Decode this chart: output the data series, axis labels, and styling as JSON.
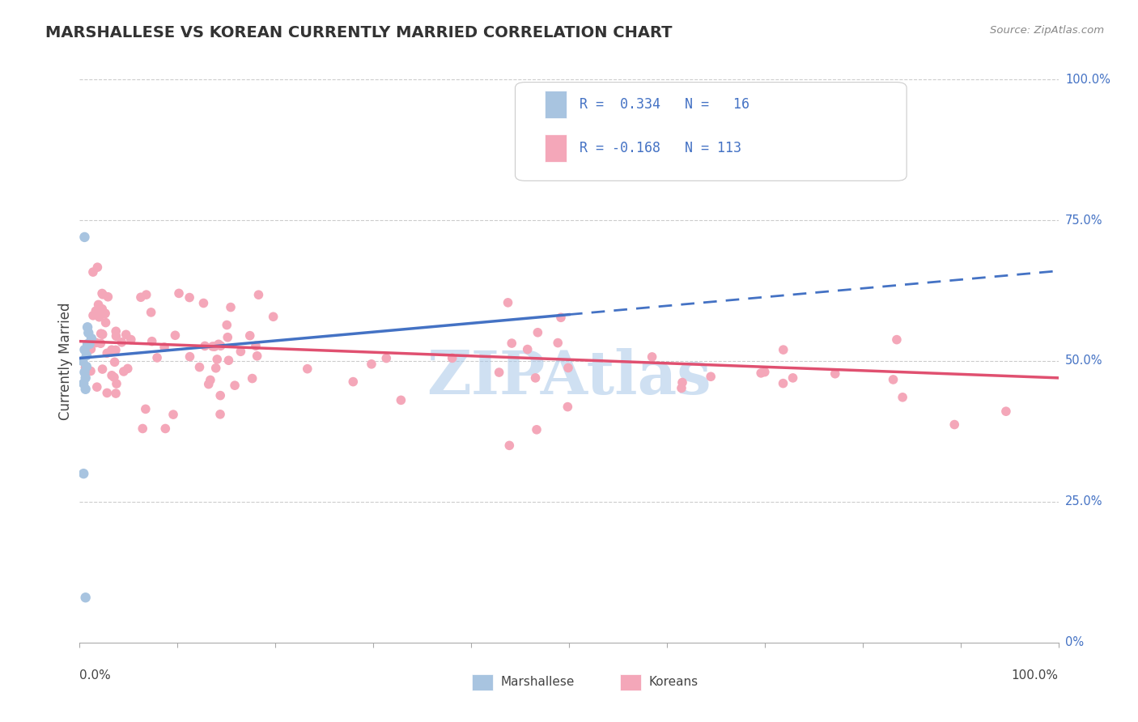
{
  "title": "MARSHALLESE VS KOREAN CURRENTLY MARRIED CORRELATION CHART",
  "source": "Source: ZipAtlas.com",
  "ylabel": "Currently Married",
  "marshallese_R": 0.334,
  "marshallese_N": 16,
  "korean_R": -0.168,
  "korean_N": 113,
  "marshallese_color": "#a8c4e0",
  "marshallese_line_color": "#4472c4",
  "korean_color": "#f4a7b9",
  "korean_line_color": "#e05070",
  "background_color": "#ffffff",
  "grid_color": "#cccccc",
  "watermark": "ZIPAtlas",
  "watermark_color": "#a8c8e8",
  "right_ytick_vals": [
    0.0,
    0.25,
    0.5,
    0.75,
    1.0
  ],
  "right_ytick_labels": [
    "0%",
    "25.0%",
    "50.0%",
    "75.0%",
    "100.0%"
  ]
}
